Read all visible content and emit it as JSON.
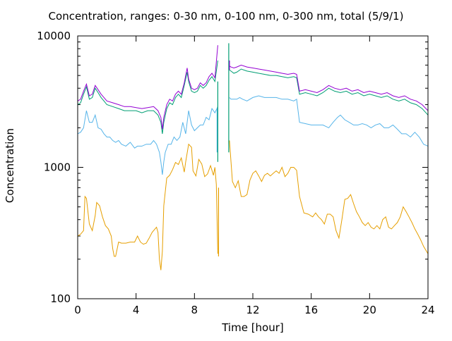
{
  "chart_data": {
    "type": "line",
    "title": "Concentration, ranges: 0-30 nm, 0-100 nm, 0-300 nm, total (5/9/1)",
    "xlabel": "Time [hour]",
    "ylabel": "Concentration",
    "xlim": [
      0,
      24
    ],
    "ylim": [
      100,
      10000
    ],
    "yscale": "log",
    "x_ticks": [
      0,
      4,
      8,
      12,
      16,
      20,
      24
    ],
    "y_ticks": [
      100,
      1000,
      10000
    ],
    "legend": "none",
    "series": [
      {
        "color": "#e69f00",
        "x": [
          0,
          0.2,
          0.4,
          0.5,
          0.6,
          0.8,
          1,
          1.2,
          1.3,
          1.5,
          1.7,
          1.9,
          2.1,
          2.3,
          2.4,
          2.5,
          2.6,
          2.8,
          3,
          3.3,
          3.6,
          3.9,
          4.1,
          4.3,
          4.5,
          4.7,
          4.9,
          5.1,
          5.3,
          5.4,
          5.5,
          5.6,
          5.7,
          5.8,
          5.9,
          6.1,
          6.3,
          6.5,
          6.7,
          6.9,
          7.1,
          7.3,
          7.4,
          7.6,
          7.8,
          7.9,
          8.1,
          8.3,
          8.5,
          8.7,
          8.9,
          9.1,
          9.3,
          9.4,
          9.5,
          9.6,
          10.4,
          10.6,
          10.8,
          11,
          11.2,
          11.4,
          11.6,
          11.8,
          12,
          12.2,
          12.4,
          12.6,
          12.8,
          13,
          13.2,
          13.4,
          13.6,
          13.8,
          14,
          14.2,
          14.4,
          14.6,
          14.8,
          15,
          15.2,
          15.5,
          15.8,
          16.1,
          16.3,
          16.5,
          16.7,
          16.9,
          17.1,
          17.3,
          17.5,
          17.7,
          17.9,
          18.1,
          18.3,
          18.5,
          18.7,
          18.9,
          19.1,
          19.3,
          19.5,
          19.7,
          19.9,
          20.1,
          20.3,
          20.5,
          20.7,
          20.9,
          21.1,
          21.3,
          21.5,
          21.7,
          21.9,
          22.1,
          22.3,
          22.5,
          22.7,
          22.9,
          23.1,
          23.3,
          23.5,
          23.7,
          24
        ],
        "values": [
          300,
          310,
          330,
          600,
          580,
          370,
          330,
          430,
          540,
          510,
          420,
          360,
          340,
          300,
          240,
          210,
          210,
          270,
          265,
          265,
          270,
          270,
          300,
          270,
          260,
          265,
          290,
          320,
          340,
          350,
          320,
          200,
          165,
          230,
          510,
          830,
          870,
          960,
          1090,
          1050,
          1180,
          920,
          1100,
          1500,
          1420,
          940,
          860,
          1150,
          1060,
          850,
          890,
          1030,
          870,
          1000,
          740,
          220,
          1600,
          780,
          700,
          790,
          600,
          600,
          620,
          800,
          900,
          940,
          860,
          780,
          870,
          900,
          860,
          900,
          940,
          900,
          1000,
          850,
          900,
          1000,
          1000,
          950,
          600,
          450,
          440,
          420,
          450,
          420,
          400,
          370,
          440,
          440,
          420,
          330,
          290,
          400,
          570,
          580,
          620,
          530,
          460,
          420,
          380,
          360,
          380,
          350,
          340,
          360,
          340,
          400,
          420,
          350,
          340,
          360,
          380,
          420,
          500,
          460,
          420,
          380,
          340,
          310,
          280,
          250,
          220
        ],
        "breaks": [
          9.6
        ]
      },
      {
        "color": "#56b4e9",
        "x": [
          0,
          0.2,
          0.4,
          0.6,
          0.8,
          1,
          1.2,
          1.4,
          1.6,
          1.8,
          2,
          2.2,
          2.4,
          2.6,
          2.8,
          3,
          3.3,
          3.6,
          3.9,
          4.1,
          4.4,
          4.7,
          5,
          5.2,
          5.4,
          5.6,
          5.7,
          5.8,
          5.9,
          6,
          6.2,
          6.4,
          6.6,
          6.8,
          7,
          7.2,
          7.4,
          7.6,
          7.8,
          8,
          8.2,
          8.4,
          8.6,
          8.8,
          9,
          9.2,
          9.4,
          9.6,
          10.4,
          10.5,
          10.7,
          10.9,
          11.1,
          11.3,
          11.6,
          12,
          12.4,
          12.8,
          13.2,
          13.6,
          14,
          14.4,
          14.8,
          15,
          15.2,
          15.6,
          16,
          16.4,
          16.8,
          17.2,
          17.5,
          17.8,
          18,
          18.3,
          18.6,
          18.9,
          19.2,
          19.5,
          19.8,
          20.1,
          20.4,
          20.7,
          21,
          21.3,
          21.6,
          21.9,
          22.2,
          22.5,
          22.8,
          23.1,
          23.4,
          23.7,
          24
        ],
        "values": [
          1800,
          1850,
          2000,
          2700,
          2200,
          2200,
          2500,
          2000,
          1950,
          1800,
          1700,
          1700,
          1600,
          1550,
          1600,
          1500,
          1450,
          1550,
          1400,
          1450,
          1450,
          1500,
          1500,
          1600,
          1500,
          1300,
          1100,
          880,
          1100,
          1300,
          1500,
          1500,
          1700,
          1600,
          1700,
          2200,
          1800,
          2700,
          2100,
          1900,
          2000,
          2100,
          2100,
          2400,
          2300,
          2800,
          2600,
          2900,
          3400,
          3300,
          3300,
          3300,
          3400,
          3300,
          3200,
          3400,
          3500,
          3400,
          3400,
          3400,
          3300,
          3300,
          3200,
          3300,
          2200,
          2150,
          2100,
          2100,
          2100,
          2000,
          2200,
          2400,
          2500,
          2300,
          2200,
          2100,
          2100,
          2150,
          2100,
          2000,
          2100,
          2150,
          2000,
          2000,
          2100,
          1950,
          1800,
          1800,
          1700,
          1850,
          1700,
          1500,
          1450
        ],
        "breaks": [
          9.6
        ]
      },
      {
        "color": "#009e73",
        "x": [
          0,
          0.2,
          0.4,
          0.6,
          0.8,
          1,
          1.2,
          1.4,
          1.6,
          1.8,
          2,
          2.4,
          2.8,
          3.2,
          3.6,
          4,
          4.4,
          4.8,
          5.2,
          5.5,
          5.7,
          5.8,
          5.9,
          6.1,
          6.3,
          6.5,
          6.7,
          6.9,
          7.1,
          7.3,
          7.5,
          7.6,
          7.8,
          8,
          8.2,
          8.4,
          8.6,
          8.8,
          9,
          9.2,
          9.4,
          9.6,
          10.4,
          10.5,
          10.7,
          10.9,
          11.2,
          11.6,
          12,
          12.4,
          12.8,
          13.2,
          13.6,
          14,
          14.4,
          14.8,
          15,
          15.2,
          15.6,
          16,
          16.4,
          16.8,
          17.2,
          17.6,
          18,
          18.4,
          18.8,
          19.2,
          19.6,
          20,
          20.4,
          20.8,
          21.2,
          21.6,
          22,
          22.4,
          22.8,
          23.2,
          23.6,
          24
        ],
        "values": [
          3000,
          3100,
          3600,
          4100,
          3300,
          3400,
          4000,
          3700,
          3400,
          3200,
          3000,
          2900,
          2800,
          2700,
          2700,
          2700,
          2600,
          2700,
          2700,
          2500,
          2200,
          1800,
          2200,
          2800,
          3100,
          3000,
          3400,
          3600,
          3400,
          4200,
          5300,
          4500,
          3800,
          3700,
          3800,
          4200,
          4000,
          4200,
          4600,
          4900,
          4500,
          6500,
          5500,
          5400,
          5200,
          5300,
          5600,
          5400,
          5300,
          5200,
          5100,
          5000,
          5000,
          4900,
          4800,
          4900,
          4800,
          3600,
          3700,
          3600,
          3500,
          3700,
          4000,
          3800,
          3700,
          3800,
          3600,
          3700,
          3500,
          3600,
          3500,
          3400,
          3500,
          3300,
          3200,
          3300,
          3100,
          3000,
          2800,
          2500
        ],
        "breaks": [
          9.6
        ]
      },
      {
        "color": "#9400d3",
        "x": [
          0,
          0.2,
          0.4,
          0.6,
          0.8,
          1,
          1.2,
          1.4,
          1.6,
          1.8,
          2,
          2.4,
          2.8,
          3.2,
          3.6,
          4,
          4.4,
          4.8,
          5.2,
          5.5,
          5.7,
          5.8,
          5.9,
          6.1,
          6.3,
          6.5,
          6.7,
          6.9,
          7.1,
          7.3,
          7.5,
          7.6,
          7.8,
          8,
          8.2,
          8.4,
          8.6,
          8.8,
          9,
          9.2,
          9.4,
          9.6,
          10.4,
          10.5,
          10.7,
          10.9,
          11.2,
          11.6,
          12,
          12.4,
          12.8,
          13.2,
          13.6,
          14,
          14.4,
          14.8,
          15,
          15.2,
          15.6,
          16,
          16.4,
          16.8,
          17.2,
          17.6,
          18,
          18.4,
          18.8,
          19.2,
          19.6,
          20,
          20.4,
          20.8,
          21.2,
          21.6,
          22,
          22.4,
          22.8,
          23.2,
          23.6,
          24
        ],
        "values": [
          3200,
          3300,
          3800,
          4300,
          3500,
          3600,
          4200,
          3900,
          3600,
          3400,
          3200,
          3100,
          3000,
          2900,
          2900,
          2850,
          2800,
          2850,
          2900,
          2700,
          2400,
          1950,
          2400,
          3000,
          3300,
          3200,
          3600,
          3800,
          3600,
          4400,
          5700,
          4700,
          4000,
          3900,
          4000,
          4400,
          4200,
          4400,
          4900,
          5200,
          4800,
          8500,
          5900,
          5800,
          5700,
          5800,
          6000,
          5800,
          5700,
          5600,
          5500,
          5400,
          5300,
          5200,
          5100,
          5200,
          5100,
          3800,
          3900,
          3800,
          3700,
          3900,
          4200,
          4000,
          3900,
          4000,
          3800,
          3900,
          3700,
          3800,
          3700,
          3600,
          3700,
          3500,
          3400,
          3500,
          3300,
          3200,
          3000,
          2700
        ],
        "breaks": [
          9.6
        ]
      }
    ],
    "spikes": [
      {
        "color": "#56b4e9",
        "x": 9.55,
        "from": 2800,
        "to": 1300
      },
      {
        "color": "#009e73",
        "x": 9.6,
        "from": 4500,
        "to": 1100
      },
      {
        "color": "#e69f00",
        "x": 9.65,
        "from": 700,
        "to": 210
      },
      {
        "color": "#009e73",
        "x": 10.35,
        "from": 1300,
        "to": 8800
      },
      {
        "color": "#9400d3",
        "x": 10.4,
        "from": 5500,
        "to": 6500
      }
    ]
  }
}
